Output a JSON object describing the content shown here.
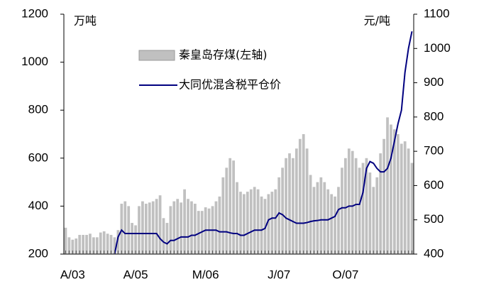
{
  "chart_data": {
    "type": "bar",
    "y_label": "万吨",
    "y2_label": "元/吨",
    "categories": [
      null,
      null,
      "A/03",
      null,
      null,
      null,
      null,
      null,
      null,
      null,
      null,
      null,
      null,
      null,
      null,
      null,
      null,
      null,
      null,
      null,
      "A/05",
      null,
      null,
      null,
      null,
      null,
      null,
      null,
      null,
      null,
      null,
      null,
      null,
      null,
      null,
      null,
      null,
      null,
      null,
      null,
      "M/06",
      null,
      null,
      null,
      null,
      null,
      null,
      null,
      null,
      null,
      null,
      null,
      null,
      null,
      null,
      null,
      null,
      null,
      null,
      null,
      null,
      "J/07",
      null,
      null,
      null,
      null,
      null,
      null,
      null,
      null,
      null,
      null,
      null,
      null,
      null,
      null,
      null,
      null,
      null,
      null,
      "O/07",
      null,
      null,
      null,
      null,
      null,
      null,
      null,
      null,
      null,
      null,
      null,
      null,
      null,
      null,
      null,
      null,
      null,
      null,
      null
    ],
    "series": [
      {
        "name": "秦皇岛存煤(左轴)",
        "type": "bar",
        "color": "#c0c0c0",
        "values": [
          310,
          270,
          260,
          265,
          280,
          280,
          280,
          285,
          270,
          270,
          290,
          295,
          285,
          280,
          270,
          300,
          410,
          420,
          400,
          330,
          320,
          400,
          420,
          410,
          415,
          420,
          430,
          445,
          350,
          330,
          400,
          420,
          430,
          415,
          470,
          430,
          420,
          410,
          380,
          380,
          395,
          390,
          400,
          420,
          440,
          520,
          560,
          600,
          590,
          500,
          460,
          450,
          460,
          470,
          480,
          470,
          440,
          430,
          450,
          460,
          470,
          520,
          560,
          600,
          620,
          600,
          640,
          680,
          700,
          640,
          530,
          480,
          500,
          520,
          500,
          470,
          450,
          440,
          480,
          560,
          600,
          640,
          630,
          600,
          560,
          580,
          600,
          540,
          480,
          520,
          620,
          680,
          770,
          740,
          720,
          700,
          660,
          670,
          640,
          580
        ]
      },
      {
        "name": "大同优混含税平仓价",
        "type": "line",
        "axis": "y2",
        "color": "#000080",
        "values": [
          null,
          null,
          null,
          null,
          null,
          null,
          null,
          null,
          null,
          null,
          null,
          null,
          null,
          null,
          400,
          450,
          470,
          460,
          460,
          460,
          460,
          460,
          460,
          460,
          460,
          460,
          460,
          445,
          435,
          430,
          440,
          440,
          445,
          450,
          450,
          450,
          455,
          455,
          460,
          465,
          470,
          470,
          470,
          470,
          465,
          465,
          465,
          462,
          460,
          460,
          455,
          455,
          460,
          465,
          470,
          470,
          470,
          475,
          500,
          505,
          505,
          520,
          515,
          505,
          500,
          495,
          490,
          490,
          490,
          492,
          495,
          497,
          498,
          500,
          500,
          500,
          505,
          510,
          530,
          535,
          535,
          540,
          540,
          545,
          545,
          580,
          650,
          670,
          665,
          650,
          640,
          640,
          650,
          680,
          730,
          780,
          820,
          930,
          1000,
          1050
        ]
      }
    ],
    "ylim": [
      200,
      1200
    ],
    "yticks": [
      200,
      400,
      600,
      800,
      1000,
      1200
    ],
    "y2lim": [
      400,
      1100
    ],
    "y2ticks": [
      400,
      500,
      600,
      700,
      800,
      900,
      1000,
      1100
    ]
  }
}
